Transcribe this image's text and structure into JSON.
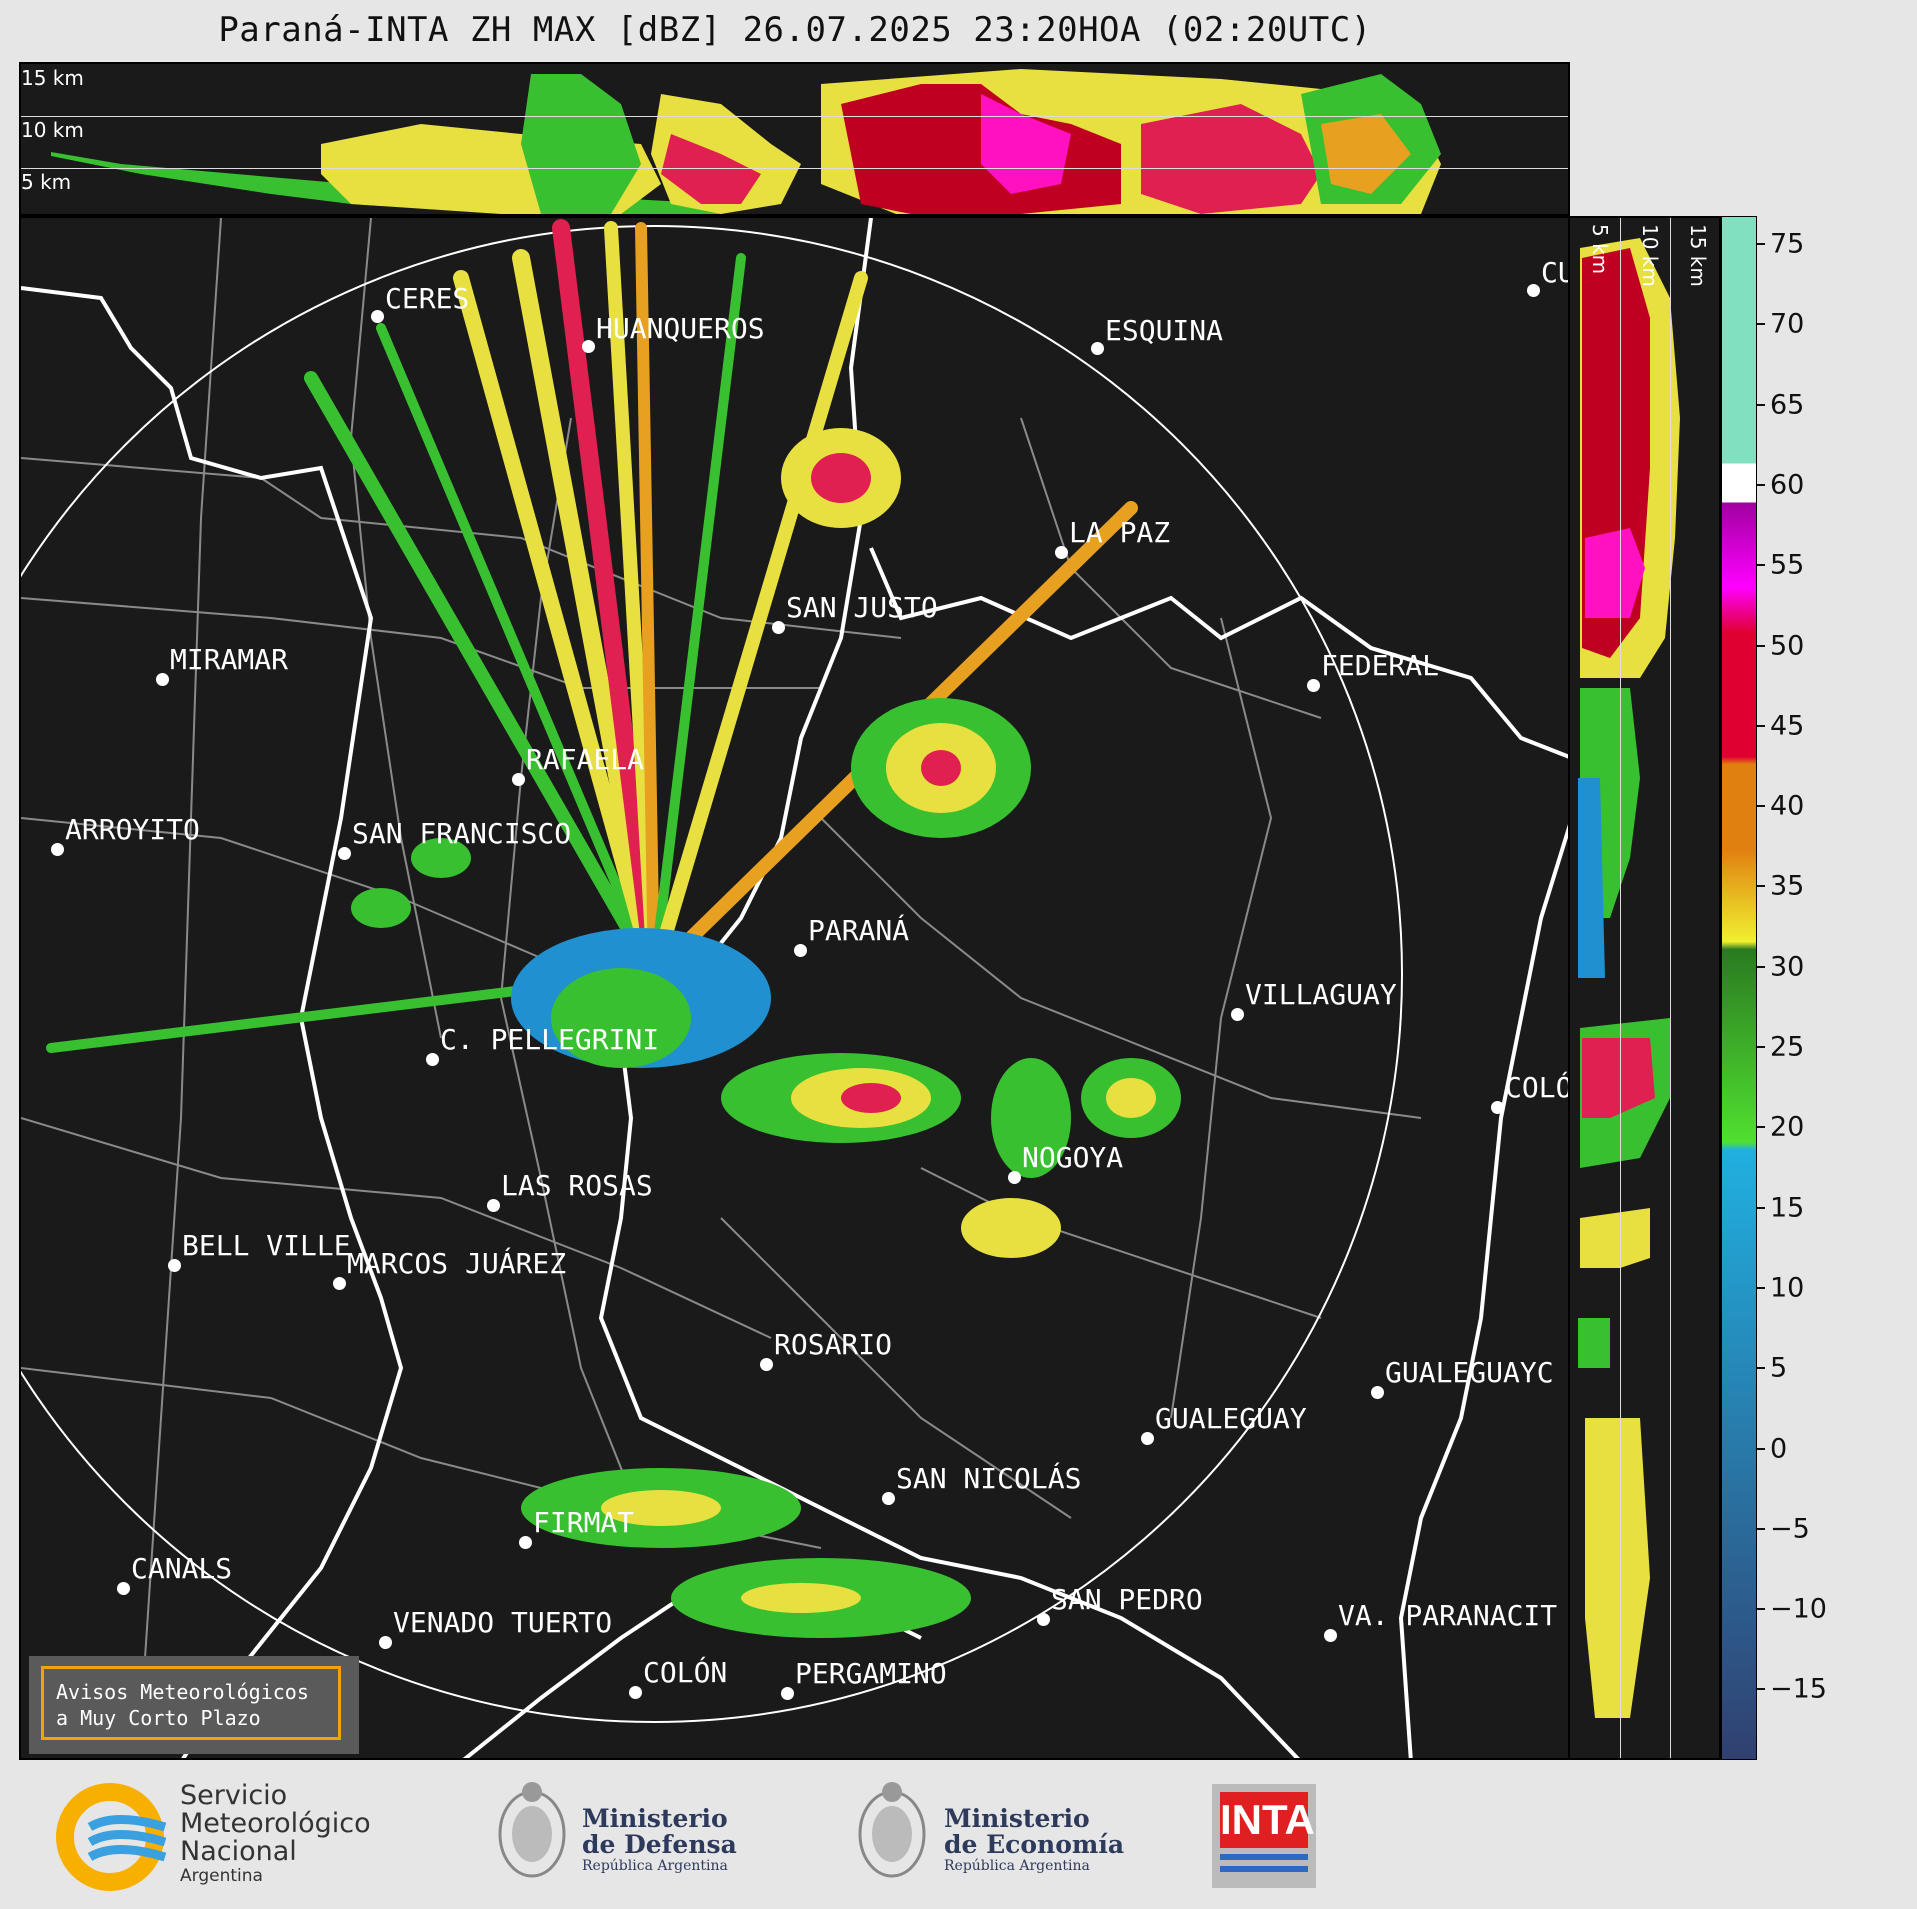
{
  "title": "Paraná-INTA ZH MAX [dBZ] 26.07.2025 23:20HOA (02:20UTC)",
  "top_panel": {
    "height_labels": [
      "15 km",
      "10 km",
      "5 km"
    ]
  },
  "side_panel": {
    "height_labels": [
      "5 km",
      "10 km",
      "15 km"
    ]
  },
  "colorbar": {
    "ticks": [
      "75",
      "70",
      "65",
      "60",
      "55",
      "50",
      "45",
      "40",
      "35",
      "30",
      "25",
      "20",
      "15",
      "10",
      "5",
      "0",
      "−5",
      "−10",
      "−15"
    ],
    "colors": {
      "cyan_high": "#80e0c0",
      "white": "#ffffff",
      "purple": "#a000a0",
      "magenta": "#ff00ff",
      "red": "#e00030",
      "orange": "#e08010",
      "yellow": "#f0f030",
      "green_dark": "#2a7a20",
      "green_light": "#50e030",
      "blue_light": "#20b0e0",
      "blue_dark": "#304070"
    }
  },
  "cities": [
    {
      "name": "CERES"
    },
    {
      "name": "HUANQUEROS"
    },
    {
      "name": "ESQUINA"
    },
    {
      "name": "CU"
    },
    {
      "name": "LA PAZ"
    },
    {
      "name": "SAN JUSTO"
    },
    {
      "name": "FEDERAL"
    },
    {
      "name": "MIRAMAR"
    },
    {
      "name": "RAFAELA"
    },
    {
      "name": "ARROYITO"
    },
    {
      "name": "SAN FRANCISCO"
    },
    {
      "name": "PARANÁ"
    },
    {
      "name": "VILLAGUAY"
    },
    {
      "name": "C. PELLEGRINI"
    },
    {
      "name": "COLÓ"
    },
    {
      "name": "NOGOYA"
    },
    {
      "name": "LAS ROSAS"
    },
    {
      "name": "BELL VILLE"
    },
    {
      "name": "MARCOS JUÁREZ"
    },
    {
      "name": "ROSARIO"
    },
    {
      "name": "GUALEGUAYC"
    },
    {
      "name": "GUALEGUAY"
    },
    {
      "name": "SAN NICOLÁS"
    },
    {
      "name": "FIRMAT"
    },
    {
      "name": "CANALS"
    },
    {
      "name": "SAN PEDRO"
    },
    {
      "name": "VENADO TUERTO"
    },
    {
      "name": "VA. PARANACIT"
    },
    {
      "name": "COLÓN"
    },
    {
      "name": "PERGAMINO"
    }
  ],
  "warning_box": {
    "line1": "Avisos Meteorológicos",
    "line2": "a Muy Corto Plazo",
    "border_color": "#f5a10a"
  },
  "footer": {
    "smn": {
      "line1": "Servicio",
      "line2": "Meteorológico",
      "line3": "Nacional",
      "line4": "Argentina"
    },
    "defensa": {
      "line1": "Ministerio",
      "line2": "de Defensa",
      "line3": "República Argentina"
    },
    "economia": {
      "line1": "Ministerio",
      "line2": "de Economía",
      "line3": "República Argentina"
    },
    "inta": {
      "label": "INTA"
    }
  }
}
